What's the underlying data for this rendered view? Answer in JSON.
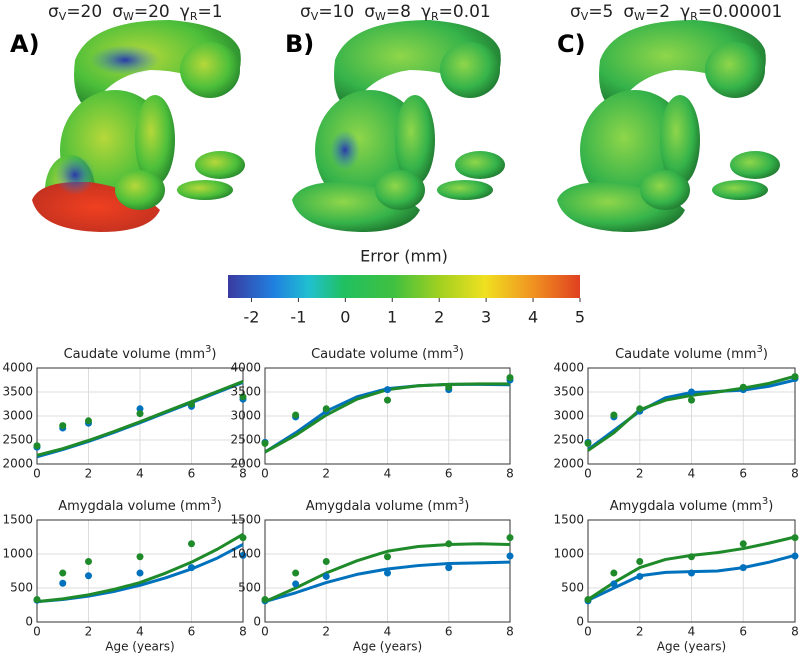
{
  "panels": [
    {
      "label": "A)",
      "params": [
        {
          "symbol": "σ",
          "sub": "V",
          "value": "=20"
        },
        {
          "symbol": "σ",
          "sub": "W",
          "value": "=20"
        },
        {
          "symbol": "γ",
          "sub": "R",
          "value": "=1"
        }
      ]
    },
    {
      "label": "B)",
      "params": [
        {
          "symbol": "σ",
          "sub": "V",
          "value": "=10"
        },
        {
          "symbol": "σ",
          "sub": "W",
          "value": "=8"
        },
        {
          "symbol": "γ",
          "sub": "R",
          "value": "=0.01"
        }
      ]
    },
    {
      "label": "C)",
      "params": [
        {
          "symbol": "σ",
          "sub": "V",
          "value": "=5"
        },
        {
          "symbol": "σ",
          "sub": "W",
          "value": "=2"
        },
        {
          "symbol": "γ",
          "sub": "R",
          "value": "=0.00001"
        }
      ]
    }
  ],
  "colorbar": {
    "title": "Error (mm)",
    "lim": [
      -2.5,
      5
    ],
    "ticks": [
      -2,
      -1,
      0,
      1,
      2,
      3,
      4,
      5
    ]
  },
  "chart_data": [
    {
      "type": "line",
      "title": "Caudate volume (mm",
      "title_sup": "3",
      "title_end": ")",
      "xlim": [
        0,
        8
      ],
      "xticks": [
        0,
        2,
        4,
        6,
        8
      ],
      "ylim": [
        2000,
        4000
      ],
      "yticks": [
        2000,
        2500,
        3000,
        3500,
        4000
      ],
      "grid": true,
      "series": [
        {
          "style": "line",
          "color": "#0072bd",
          "x": [
            0,
            1,
            2,
            3,
            4,
            5,
            6,
            7,
            8
          ],
          "values": [
            2150,
            2300,
            2470,
            2660,
            2860,
            3070,
            3280,
            3490,
            3700
          ]
        },
        {
          "style": "line",
          "color": "#1f8a2a",
          "x": [
            0,
            1,
            2,
            3,
            4,
            5,
            6,
            7,
            8
          ],
          "values": [
            2180,
            2320,
            2490,
            2680,
            2880,
            3090,
            3300,
            3510,
            3720
          ]
        },
        {
          "style": "markers",
          "color": "#0072bd",
          "x": [
            0,
            1,
            2,
            4,
            6,
            8
          ],
          "values": [
            2350,
            2750,
            2850,
            3150,
            3200,
            3350
          ]
        },
        {
          "style": "markers",
          "color": "#1f8a2a",
          "x": [
            0,
            1,
            2,
            4,
            6,
            8
          ],
          "values": [
            2380,
            2800,
            2900,
            3050,
            3250,
            3400
          ]
        }
      ]
    },
    {
      "type": "line",
      "title": "Caudate volume (mm",
      "title_sup": "3",
      "title_end": ")",
      "xlim": [
        0,
        8
      ],
      "xticks": [
        0,
        2,
        4,
        6,
        8
      ],
      "ylim": [
        2000,
        4000
      ],
      "yticks": [
        2000,
        2500,
        3000,
        3500,
        4000
      ],
      "grid": true,
      "series": [
        {
          "style": "line",
          "color": "#0072bd",
          "x": [
            0,
            1,
            2,
            3,
            4,
            5,
            6,
            7,
            8
          ],
          "values": [
            2250,
            2650,
            3100,
            3400,
            3570,
            3630,
            3660,
            3660,
            3650
          ]
        },
        {
          "style": "line",
          "color": "#1f8a2a",
          "x": [
            0,
            1,
            2,
            3,
            4,
            5,
            6,
            7,
            8
          ],
          "values": [
            2250,
            2600,
            3020,
            3350,
            3550,
            3630,
            3660,
            3670,
            3670
          ]
        },
        {
          "style": "markers",
          "color": "#0072bd",
          "x": [
            0,
            1,
            2,
            4,
            6,
            8
          ],
          "values": [
            2450,
            2980,
            3100,
            3550,
            3550,
            3750
          ]
        },
        {
          "style": "markers",
          "color": "#1f8a2a",
          "x": [
            0,
            1,
            2,
            4,
            6,
            8
          ],
          "values": [
            2430,
            3020,
            3150,
            3330,
            3600,
            3800
          ]
        }
      ]
    },
    {
      "type": "line",
      "title": "Caudate volume (mm",
      "title_sup": "3",
      "title_end": ")",
      "xlim": [
        0,
        8
      ],
      "xticks": [
        0,
        2,
        4,
        6,
        8
      ],
      "ylim": [
        2000,
        4000
      ],
      "yticks": [
        2000,
        2500,
        3000,
        3500,
        4000
      ],
      "grid": true,
      "series": [
        {
          "style": "line",
          "color": "#0072bd",
          "x": [
            0,
            1,
            2,
            3,
            4,
            5,
            6,
            7,
            8
          ],
          "values": [
            2300,
            2700,
            3100,
            3380,
            3490,
            3510,
            3540,
            3620,
            3750
          ]
        },
        {
          "style": "line",
          "color": "#1f8a2a",
          "x": [
            0,
            1,
            2,
            3,
            4,
            5,
            6,
            7,
            8
          ],
          "values": [
            2280,
            2650,
            3130,
            3330,
            3430,
            3500,
            3580,
            3680,
            3830
          ]
        },
        {
          "style": "markers",
          "color": "#0072bd",
          "x": [
            0,
            1,
            2,
            4,
            6,
            8
          ],
          "values": [
            2450,
            2980,
            3100,
            3500,
            3550,
            3780
          ]
        },
        {
          "style": "markers",
          "color": "#1f8a2a",
          "x": [
            0,
            1,
            2,
            4,
            6,
            8
          ],
          "values": [
            2430,
            3020,
            3150,
            3330,
            3600,
            3820
          ]
        }
      ]
    },
    {
      "type": "line",
      "title": "Amygdala volume (mm",
      "title_sup": "3",
      "title_end": ")",
      "xlabel": "Age (years)",
      "xlim": [
        0,
        8
      ],
      "xticks": [
        0,
        2,
        4,
        6,
        8
      ],
      "ylim": [
        0,
        1500
      ],
      "yticks": [
        0,
        500,
        1000,
        1500
      ],
      "grid": true,
      "series": [
        {
          "style": "line",
          "color": "#0072bd",
          "x": [
            0,
            1,
            2,
            3,
            4,
            5,
            6,
            7,
            8
          ],
          "values": [
            300,
            330,
            380,
            450,
            540,
            650,
            780,
            940,
            1140
          ]
        },
        {
          "style": "line",
          "color": "#1f8a2a",
          "x": [
            0,
            1,
            2,
            3,
            4,
            5,
            6,
            7,
            8
          ],
          "values": [
            300,
            340,
            400,
            480,
            580,
            720,
            880,
            1070,
            1290
          ]
        },
        {
          "style": "markers",
          "color": "#0072bd",
          "x": [
            0,
            1,
            2,
            4,
            6,
            8
          ],
          "values": [
            320,
            570,
            680,
            720,
            800,
            980
          ]
        },
        {
          "style": "markers",
          "color": "#1f8a2a",
          "x": [
            0,
            1,
            2,
            4,
            6,
            8
          ],
          "values": [
            330,
            720,
            890,
            960,
            1150,
            1240
          ]
        }
      ]
    },
    {
      "type": "line",
      "title": "Amygdala volume (mm",
      "title_sup": "3",
      "title_end": ")",
      "xlabel": "Age (years)",
      "xlim": [
        0,
        8
      ],
      "xticks": [
        0,
        2,
        4,
        6,
        8
      ],
      "ylim": [
        0,
        1500
      ],
      "yticks": [
        0,
        500,
        1000,
        1500
      ],
      "grid": true,
      "series": [
        {
          "style": "line",
          "color": "#0072bd",
          "x": [
            0,
            1,
            2,
            3,
            4,
            5,
            6,
            7,
            8
          ],
          "values": [
            300,
            430,
            580,
            700,
            780,
            830,
            860,
            870,
            880
          ]
        },
        {
          "style": "line",
          "color": "#1f8a2a",
          "x": [
            0,
            1,
            2,
            3,
            4,
            5,
            6,
            7,
            8
          ],
          "values": [
            300,
            500,
            720,
            900,
            1040,
            1110,
            1140,
            1150,
            1140
          ]
        },
        {
          "style": "markers",
          "color": "#0072bd",
          "x": [
            0,
            1,
            2,
            4,
            6,
            8
          ],
          "values": [
            310,
            560,
            670,
            720,
            800,
            970
          ]
        },
        {
          "style": "markers",
          "color": "#1f8a2a",
          "x": [
            0,
            1,
            2,
            4,
            6,
            8
          ],
          "values": [
            330,
            720,
            890,
            960,
            1150,
            1240
          ]
        }
      ]
    },
    {
      "type": "line",
      "title": "Amygdala volume (mm",
      "title_sup": "3",
      "title_end": ")",
      "xlabel": "Age (years)",
      "xlim": [
        0,
        8
      ],
      "xticks": [
        0,
        2,
        4,
        6,
        8
      ],
      "ylim": [
        0,
        1500
      ],
      "yticks": [
        0,
        500,
        1000,
        1500
      ],
      "grid": true,
      "series": [
        {
          "style": "line",
          "color": "#0072bd",
          "x": [
            0,
            1,
            2,
            3,
            4,
            5,
            6,
            7,
            8
          ],
          "values": [
            320,
            500,
            680,
            730,
            740,
            750,
            800,
            880,
            980
          ]
        },
        {
          "style": "line",
          "color": "#1f8a2a",
          "x": [
            0,
            1,
            2,
            3,
            4,
            5,
            6,
            7,
            8
          ],
          "values": [
            330,
            580,
            800,
            920,
            980,
            1020,
            1080,
            1160,
            1250
          ]
        },
        {
          "style": "markers",
          "color": "#0072bd",
          "x": [
            0,
            1,
            2,
            4,
            6,
            8
          ],
          "values": [
            310,
            560,
            670,
            720,
            800,
            970
          ]
        },
        {
          "style": "markers",
          "color": "#1f8a2a",
          "x": [
            0,
            1,
            2,
            4,
            6,
            8
          ],
          "values": [
            330,
            720,
            890,
            960,
            1150,
            1240
          ]
        }
      ]
    }
  ]
}
